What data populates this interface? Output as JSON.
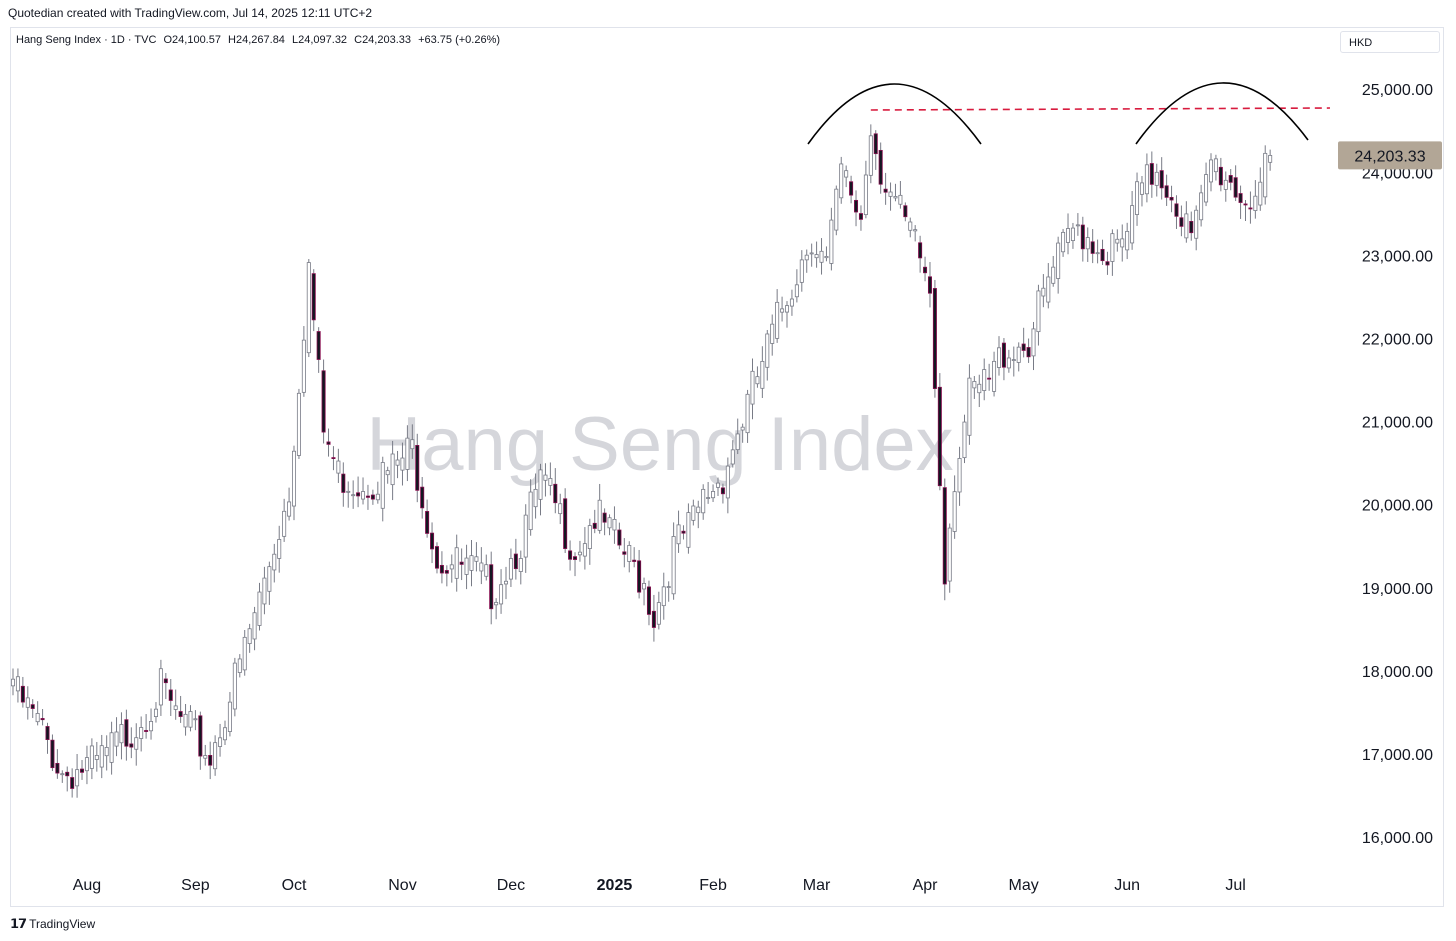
{
  "attribution": "Quotedian created with TradingView.com, Jul 14, 2025 12:11 UTC+2",
  "legend": {
    "symbol": "Hang Seng Index · 1D · TVC",
    "open": "O24,100.57",
    "high": "H24,267.84",
    "low": "L24,097.32",
    "close": "C24,203.33",
    "change": "+63.75 (+0.26%)"
  },
  "currency": "HKD",
  "watermark": "Hang Seng Index",
  "footer": {
    "logo": "𝟭𝟳",
    "brand": "TradingView"
  },
  "colors": {
    "up": "#787b86",
    "down": "#880e4f",
    "wick": "#787b86",
    "resistance": "#d81b3e",
    "price_label_bg": "#b2a696",
    "text": "#131722"
  },
  "chart_data": {
    "type": "candlestick",
    "title": "Hang Seng Index",
    "ylim": [
      15700,
      25400
    ],
    "y_ticks": [
      {
        "value": 25000,
        "label": "25,000.00"
      },
      {
        "value": 24000,
        "label": "24,000.00"
      },
      {
        "value": 23000,
        "label": "23,000.00"
      },
      {
        "value": 22000,
        "label": "22,000.00"
      },
      {
        "value": 21000,
        "label": "21,000.00"
      },
      {
        "value": 20000,
        "label": "20,000.00"
      },
      {
        "value": 19000,
        "label": "19,000.00"
      },
      {
        "value": 18000,
        "label": "18,000.00"
      },
      {
        "value": 17000,
        "label": "17,000.00"
      },
      {
        "value": 16000,
        "label": "16,000.00"
      }
    ],
    "x_ticks": [
      {
        "index": 15,
        "label": "Aug"
      },
      {
        "index": 37,
        "label": "Sep"
      },
      {
        "index": 57,
        "label": "Oct"
      },
      {
        "index": 79,
        "label": "Nov"
      },
      {
        "index": 101,
        "label": "Dec"
      },
      {
        "index": 122,
        "label": "2025"
      },
      {
        "index": 142,
        "label": "Feb"
      },
      {
        "index": 163,
        "label": "Mar"
      },
      {
        "index": 185,
        "label": "Apr"
      },
      {
        "index": 205,
        "label": "May"
      },
      {
        "index": 226,
        "label": "Jun"
      },
      {
        "index": 248,
        "label": "Jul"
      }
    ],
    "last_price": {
      "value": 24203.33,
      "label": "24,203.33"
    },
    "resistance": 24750,
    "anchors": [
      [
        0,
        17900
      ],
      [
        5,
        17500
      ],
      [
        10,
        16900
      ],
      [
        17,
        17000
      ],
      [
        25,
        17500
      ],
      [
        30,
        17900
      ],
      [
        33,
        17600
      ],
      [
        40,
        17100
      ],
      [
        46,
        18200
      ],
      [
        50,
        19000
      ],
      [
        56,
        20300
      ],
      [
        60,
        23000
      ],
      [
        63,
        21000
      ],
      [
        66,
        20500
      ],
      [
        70,
        20400
      ],
      [
        76,
        20500
      ],
      [
        81,
        20800
      ],
      [
        86,
        19500
      ],
      [
        94,
        19300
      ],
      [
        97,
        19100
      ],
      [
        103,
        19700
      ],
      [
        107,
        20400
      ],
      [
        110,
        20100
      ],
      [
        114,
        19600
      ],
      [
        118,
        20000
      ],
      [
        122,
        19700
      ],
      [
        128,
        19200
      ],
      [
        130,
        18800
      ],
      [
        134,
        19600
      ],
      [
        138,
        19900
      ],
      [
        140,
        20200
      ],
      [
        144,
        20500
      ],
      [
        150,
        21500
      ],
      [
        156,
        22500
      ],
      [
        158,
        22800
      ],
      [
        162,
        23400
      ],
      [
        165,
        23000
      ],
      [
        168,
        24100
      ],
      [
        172,
        23600
      ],
      [
        174,
        24700
      ],
      [
        176,
        24200
      ],
      [
        180,
        23600
      ],
      [
        184,
        23100
      ],
      [
        186,
        22700
      ],
      [
        188,
        20500
      ],
      [
        189,
        19400
      ],
      [
        191,
        20500
      ],
      [
        194,
        21400
      ],
      [
        198,
        21600
      ],
      [
        201,
        22000
      ],
      [
        206,
        22100
      ],
      [
        210,
        22800
      ],
      [
        213,
        23200
      ],
      [
        216,
        23500
      ],
      [
        221,
        23200
      ],
      [
        225,
        23200
      ],
      [
        228,
        23800
      ],
      [
        232,
        24200
      ],
      [
        236,
        23800
      ],
      [
        239,
        23300
      ],
      [
        241,
        23700
      ],
      [
        243,
        24250
      ],
      [
        246,
        24100
      ],
      [
        250,
        23800
      ],
      [
        253,
        24000
      ],
      [
        255,
        24203
      ]
    ]
  }
}
